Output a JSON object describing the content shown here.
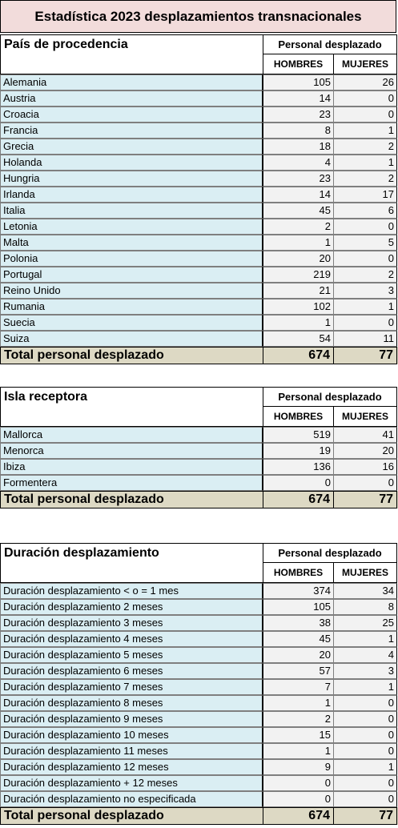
{
  "title": "Estadística 2023 desplazamientos transnacionales",
  "tables": [
    {
      "heading": "País de procedencia",
      "group_label": "Personal desplazado",
      "col_h": "HOMBRES",
      "col_m": "MUJERES",
      "rows": [
        {
          "name": "Alemania",
          "h": "105",
          "m": "26"
        },
        {
          "name": "Austria",
          "h": "14",
          "m": "0"
        },
        {
          "name": "Croacia",
          "h": "23",
          "m": "0"
        },
        {
          "name": "Francia",
          "h": "8",
          "m": "1"
        },
        {
          "name": "Grecia",
          "h": "18",
          "m": "2"
        },
        {
          "name": "Holanda",
          "h": "4",
          "m": "1"
        },
        {
          "name": "Hungria",
          "h": "23",
          "m": "2"
        },
        {
          "name": "Irlanda",
          "h": "14",
          "m": "17"
        },
        {
          "name": "Italia",
          "h": "45",
          "m": "6"
        },
        {
          "name": "Letonia",
          "h": "2",
          "m": "0"
        },
        {
          "name": "Malta",
          "h": "1",
          "m": "5"
        },
        {
          "name": "Polonia",
          "h": "20",
          "m": "0"
        },
        {
          "name": "Portugal",
          "h": "219",
          "m": "2"
        },
        {
          "name": "Reino Unido",
          "h": "21",
          "m": "3"
        },
        {
          "name": "Rumania",
          "h": "102",
          "m": "1"
        },
        {
          "name": "Suecia",
          "h": "1",
          "m": "0"
        },
        {
          "name": "Suiza",
          "h": "54",
          "m": "11"
        }
      ],
      "total": {
        "name": "Total personal desplazado",
        "h": "674",
        "m": "77"
      }
    },
    {
      "heading": "Isla receptora",
      "group_label": "Personal desplazado",
      "col_h": "HOMBRES",
      "col_m": "MUJERES",
      "rows": [
        {
          "name": "Mallorca",
          "h": "519",
          "m": "41"
        },
        {
          "name": "Menorca",
          "h": "19",
          "m": "20"
        },
        {
          "name": "Ibiza",
          "h": "136",
          "m": "16"
        },
        {
          "name": "Formentera",
          "h": "0",
          "m": "0"
        }
      ],
      "total": {
        "name": "Total personal desplazado",
        "h": "674",
        "m": "77"
      }
    },
    {
      "heading": "Duración desplazamiento",
      "group_label": "Personal desplazado",
      "col_h": "HOMBRES",
      "col_m": "MUJERES",
      "rows": [
        {
          "name": "Duración desplazamiento < o = 1 mes",
          "h": "374",
          "m": "34"
        },
        {
          "name": "Duración desplazamiento 2 meses",
          "h": "105",
          "m": "8"
        },
        {
          "name": "Duración desplazamiento 3 meses",
          "h": "38",
          "m": "25"
        },
        {
          "name": "Duración desplazamiento 4 meses",
          "h": "45",
          "m": "1"
        },
        {
          "name": "Duración desplazamiento 5 meses",
          "h": "20",
          "m": "4"
        },
        {
          "name": "Duración desplazamiento 6 meses",
          "h": "57",
          "m": "3"
        },
        {
          "name": "Duración desplazamiento 7 meses",
          "h": "7",
          "m": "1"
        },
        {
          "name": "Duración desplazamiento 8 meses",
          "h": "1",
          "m": "0"
        },
        {
          "name": "Duración desplazamiento 9 meses",
          "h": "2",
          "m": "0"
        },
        {
          "name": "Duración desplazamiento 10 meses",
          "h": "15",
          "m": "0"
        },
        {
          "name": "Duración desplazamiento 11 meses",
          "h": "1",
          "m": "0"
        },
        {
          "name": "Duración desplazamiento 12 meses",
          "h": "9",
          "m": "1"
        },
        {
          "name": "Duración desplazamiento + 12 meses",
          "h": "0",
          "m": "0"
        },
        {
          "name": "Duración desplazamiento no especificada",
          "h": "0",
          "m": "0"
        }
      ],
      "total": {
        "name": "Total personal desplazado",
        "h": "674",
        "m": "77"
      }
    }
  ]
}
